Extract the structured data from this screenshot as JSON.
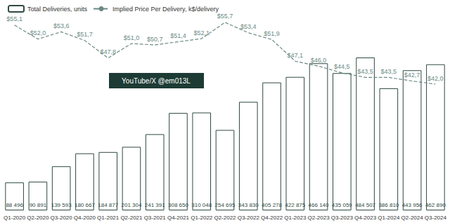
{
  "chart_data": {
    "type": "bar",
    "categories": [
      "Q1-2020",
      "Q2-2020",
      "Q3-2020",
      "Q4-2020",
      "Q1-2021",
      "Q2-2021",
      "Q3-2021",
      "Q4-2021",
      "Q1-2022",
      "Q2-2022",
      "Q3-2022",
      "Q4-2022",
      "Q1-2023",
      "Q2-2023",
      "Q3-2023",
      "Q4-2023",
      "Q1-2024",
      "Q2-2024",
      "Q3-2024"
    ],
    "series": [
      {
        "name": "Total Deliveries, units",
        "type": "bar",
        "color": "#2f4a43",
        "values": [
          88496,
          90891,
          139593,
          180667,
          184877,
          201304,
          241391,
          308650,
          310048,
          254695,
          343830,
          405278,
          422875,
          466140,
          435059,
          484507,
          386810,
          443956,
          462890
        ],
        "value_labels": [
          "88 496",
          "90 891",
          "139 593",
          "180 667",
          "184 877",
          "201 304",
          "241 391",
          "308 650",
          "310 048",
          "254 695",
          "343 830",
          "405 278",
          "422 875",
          "466 140",
          "435 059",
          "484 507",
          "386 810",
          "443 956",
          "462 890"
        ]
      },
      {
        "name": "Implied Price Per Delivery, k$/delivery",
        "type": "line",
        "axis": "y2",
        "color": "#6a8a83",
        "line_style": "dashed",
        "values": [
          55.1,
          52.0,
          53.6,
          51.7,
          47.8,
          51.0,
          50.7,
          51.4,
          52.1,
          55.7,
          53.4,
          51.9,
          47.1,
          46.0,
          44.5,
          43.5,
          43.5,
          42.7,
          42.0
        ],
        "value_labels": [
          "$55,1",
          "$52,0",
          "$53,6",
          "$51,7",
          "$47,8",
          "$51,0",
          "$50,7",
          "$51,4",
          "$52,1",
          "$55,7",
          "$53,4",
          "$51,9",
          "$47,1",
          "$46,0",
          "$44,5",
          "$43,5",
          "$43,5",
          "$42,7",
          "$42,0"
        ]
      }
    ],
    "ylim": [
      0,
      600000
    ],
    "yticks": [
      0,
      100000,
      200000,
      300000,
      400000,
      500000,
      600000
    ],
    "y2lim": [
      14,
      56
    ],
    "y2ticks": [
      14,
      21,
      28,
      35,
      42,
      49,
      56
    ],
    "legend": "top-left",
    "data_labels": true,
    "tick_labels": "x",
    "grid": false,
    "annotation": "YouTube/X @em013L"
  }
}
